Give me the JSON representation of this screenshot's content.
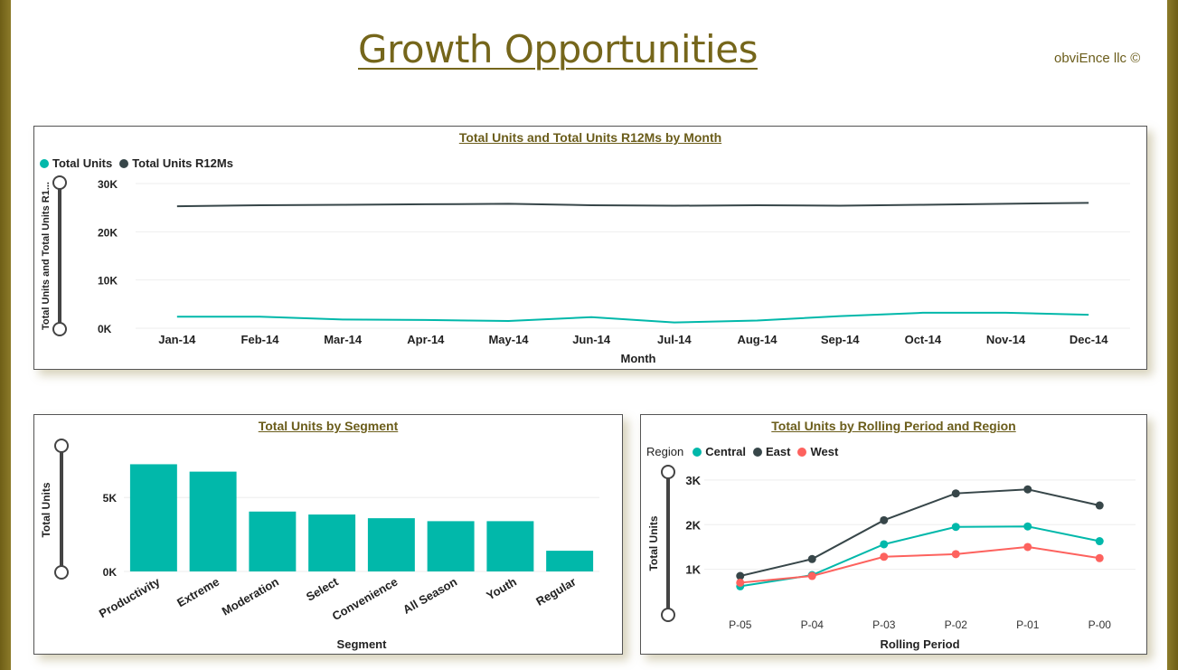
{
  "header": {
    "title": "Growth Opportunities",
    "brand": "obviEnce llc ©"
  },
  "colors": {
    "teal": "#01B8AA",
    "dark": "#374649",
    "red": "#FD625E",
    "accent": "#75661b"
  },
  "chart_data": [
    {
      "type": "line",
      "title": "Total Units and Total Units R12Ms by Month",
      "xlabel": "Month",
      "ylabel": "Total Units and Total Units R1...",
      "categories": [
        "Jan-14",
        "Feb-14",
        "Mar-14",
        "Apr-14",
        "May-14",
        "Jun-14",
        "Jul-14",
        "Aug-14",
        "Sep-14",
        "Oct-14",
        "Nov-14",
        "Dec-14"
      ],
      "series": [
        {
          "name": "Total Units",
          "color": "#01B8AA",
          "values": [
            2400,
            2400,
            1800,
            1700,
            1500,
            2300,
            1200,
            1600,
            2500,
            3200,
            3200,
            2800
          ]
        },
        {
          "name": "Total Units R12Ms",
          "color": "#374649",
          "values": [
            25300,
            25500,
            25600,
            25700,
            25800,
            25500,
            25400,
            25500,
            25400,
            25600,
            25800,
            26000
          ]
        }
      ],
      "ylim": [
        0,
        30000
      ],
      "yticks": [
        "0K",
        "10K",
        "20K",
        "30K"
      ],
      "legend": "top-left"
    },
    {
      "type": "bar",
      "title": "Total Units by Segment",
      "xlabel": "Segment",
      "ylabel": "Total Units",
      "categories": [
        "Productivity",
        "Extreme",
        "Moderation",
        "Select",
        "Convenience",
        "All Season",
        "Youth",
        "Regular"
      ],
      "values": [
        7250,
        6750,
        4050,
        3850,
        3600,
        3400,
        3400,
        1400
      ],
      "ylim": [
        0,
        8500
      ],
      "yticks": [
        "0K",
        "5K"
      ],
      "color": "#01B8AA"
    },
    {
      "type": "line",
      "title": "Total Units by Rolling Period and Region",
      "xlabel": "Rolling Period",
      "ylabel": "Total Units",
      "legend_title": "Region",
      "categories": [
        "P-05",
        "P-04",
        "P-03",
        "P-02",
        "P-01",
        "P-00"
      ],
      "series": [
        {
          "name": "Central",
          "color": "#01B8AA",
          "values": [
            620,
            870,
            1560,
            1950,
            1960,
            1630
          ]
        },
        {
          "name": "East",
          "color": "#374649",
          "values": [
            850,
            1230,
            2100,
            2700,
            2790,
            2430
          ]
        },
        {
          "name": "West",
          "color": "#FD625E",
          "values": [
            700,
            850,
            1280,
            1340,
            1500,
            1250
          ]
        }
      ],
      "ylim": [
        0,
        3200
      ],
      "yticks": [
        "1K",
        "2K",
        "3K"
      ],
      "legend": "top-left"
    }
  ]
}
